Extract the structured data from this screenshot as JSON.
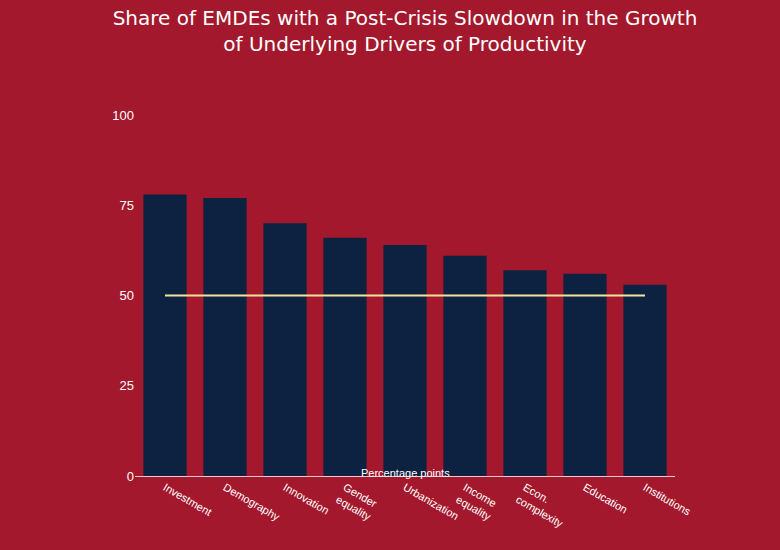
{
  "chart_data": {
    "type": "bar",
    "title": "Share of EMDEs with a Post-Crisis Slowdown in the Growth of Underlying Drivers of Productivity",
    "subtitle": "Percentage points",
    "categories": [
      "Investment",
      "Demography",
      "Innovation",
      "Gender equality",
      "Urbanization",
      "Income equality",
      "Econ. complexity",
      "Education",
      "Institutions"
    ],
    "series": [
      {
        "type": "bar",
        "color": "#0d2240",
        "values": [
          78,
          77,
          70,
          66,
          64,
          61,
          57,
          56,
          53
        ]
      },
      {
        "type": "line",
        "color": "#f3e39a",
        "values": [
          50,
          50,
          50,
          50,
          50,
          50,
          50,
          50,
          50
        ]
      }
    ],
    "ylim": [
      0,
      100
    ],
    "yticks": [
      0,
      25,
      50,
      75,
      100
    ],
    "grid": false
  }
}
